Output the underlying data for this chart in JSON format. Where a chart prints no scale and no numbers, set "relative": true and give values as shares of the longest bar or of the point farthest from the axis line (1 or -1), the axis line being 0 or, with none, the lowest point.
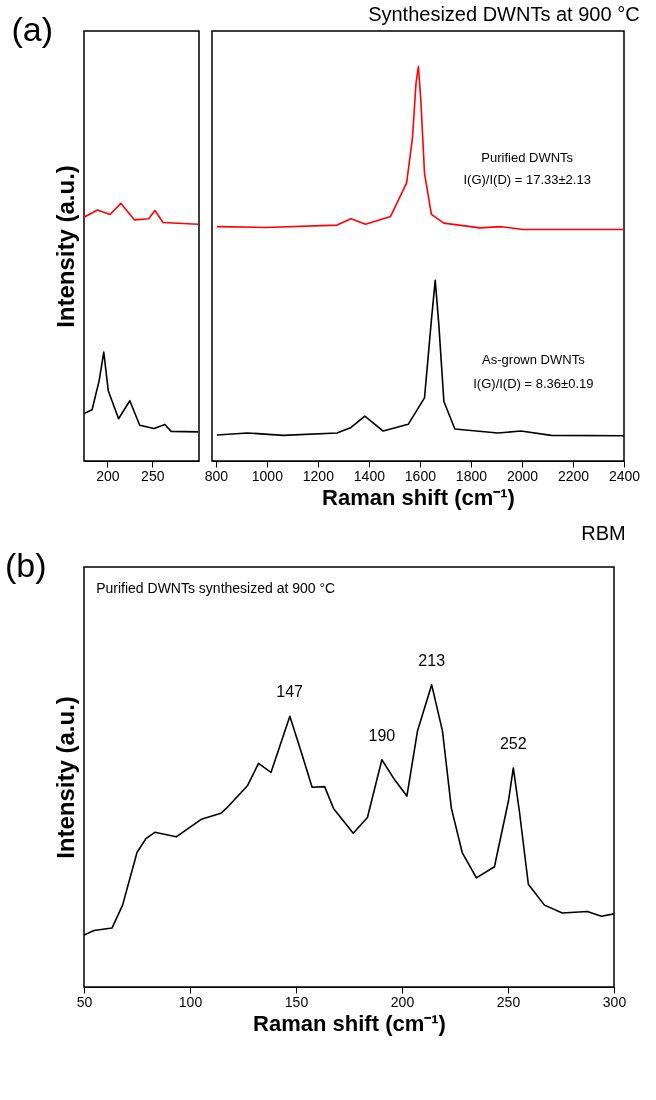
{
  "chart_data": [
    {
      "type": "line",
      "ylabel": "Intensity (a.u.)",
      "relative": true,
      "tick_labels": "x",
      "xlim": [
        174,
        302
      ],
      "xticks": [
        200,
        250
      ],
      "annotations": [
        "(a)"
      ],
      "series": [
        {
          "color": "#ff0000",
          "x": [
            174,
            189,
            203,
            215,
            230,
            246,
            253,
            262,
            301
          ],
          "values": [
            0.946,
            0.974,
            0.957,
            1.0,
            0.936,
            0.94,
            0.972,
            0.926,
            0.919
          ]
        },
        {
          "color": "#000000",
          "x": [
            174,
            183,
            191,
            196,
            201,
            212.5,
            225,
            236,
            252,
            264,
            271,
            301
          ],
          "values": [
            0.184,
            0.199,
            0.314,
            0.423,
            0.273,
            0.164,
            0.234,
            0.139,
            0.126,
            0.142,
            0.115,
            0.113
          ]
        }
      ]
    },
    {
      "type": "line",
      "title": "Synthesized DWNTs at 900 °C",
      "xlabel": "Raman shift (cm⁻¹)",
      "relative": true,
      "tick_labels": "x",
      "xlim": [
        785,
        2400
      ],
      "xticks": [
        800,
        1000,
        1200,
        1400,
        1600,
        1800,
        2000,
        2200,
        2400
      ],
      "annotations": [
        "Purified DWNTs",
        "I(G)/I(D) = 17.33±2.13",
        "As-grown DWNTs",
        "I(G)/I(D) = 8.36±0.19"
      ],
      "series": [
        {
          "color": "#ff0000",
          "x": [
            804,
            994,
            1275,
            1330,
            1387,
            1485,
            1548,
            1571,
            1585,
            1594,
            1604,
            1618,
            1645,
            1694,
            1835,
            1919,
            2003,
            2400
          ],
          "values": [
            0.594,
            0.592,
            0.598,
            0.614,
            0.6,
            0.62,
            0.705,
            0.82,
            0.96,
            1.0,
            0.91,
            0.73,
            0.625,
            0.603,
            0.591,
            0.594,
            0.587,
            0.587
          ]
        },
        {
          "color": "#000000",
          "x": [
            804,
            924,
            1064,
            1275,
            1330,
            1384,
            1456,
            1554,
            1618,
            1645,
            1660,
            1674,
            1694,
            1737,
            1905,
            1996,
            2115,
            2400
          ],
          "values": [
            0.066,
            0.071,
            0.065,
            0.071,
            0.085,
            0.114,
            0.076,
            0.093,
            0.16,
            0.357,
            0.458,
            0.347,
            0.151,
            0.081,
            0.071,
            0.076,
            0.065,
            0.064
          ]
        }
      ]
    },
    {
      "type": "line",
      "title": "RBM",
      "xlabel": "Raman shift (cm⁻¹)",
      "ylabel": "Intensity (a.u.)",
      "relative": true,
      "tick_labels": "x",
      "xlim": [
        50,
        300
      ],
      "xticks": [
        50,
        100,
        150,
        200,
        250,
        300
      ],
      "annotations": [
        "(b)",
        "Purified DWNTs synthesized at 900 °C",
        {
          "text": "147",
          "x": 147,
          "y": 0.896
        },
        {
          "text": "190",
          "x": 190.5,
          "y": 0.752
        },
        {
          "text": "213",
          "x": 214,
          "y": 1.0
        },
        {
          "text": "252",
          "x": 252.5,
          "y": 0.725
        }
      ],
      "series": [
        {
          "color": "#000000",
          "x": [
            50,
            54.7,
            63.2,
            68.2,
            75,
            79.2,
            83.4,
            93.5,
            105.3,
            114.6,
            117.1,
            127.2,
            132.3,
            138.2,
            147.1,
            152.5,
            157.6,
            163.5,
            167.7,
            177,
            183.7,
            190.5,
            196.7,
            202.3,
            207.3,
            214,
            219.1,
            223.3,
            228.4,
            235.1,
            243.6,
            250.3,
            252.5,
            255.4,
            259.6,
            267.2,
            275.6,
            287.4,
            294.1,
            300
          ],
          "values": [
            0.172,
            0.187,
            0.195,
            0.271,
            0.445,
            0.491,
            0.512,
            0.497,
            0.555,
            0.575,
            0.591,
            0.667,
            0.74,
            0.71,
            0.896,
            0.777,
            0.661,
            0.663,
            0.591,
            0.509,
            0.561,
            0.752,
            0.684,
            0.632,
            0.847,
            1.0,
            0.847,
            0.591,
            0.445,
            0.361,
            0.398,
            0.619,
            0.725,
            0.58,
            0.34,
            0.271,
            0.245,
            0.25,
            0.234,
            0.242
          ]
        }
      ]
    }
  ]
}
